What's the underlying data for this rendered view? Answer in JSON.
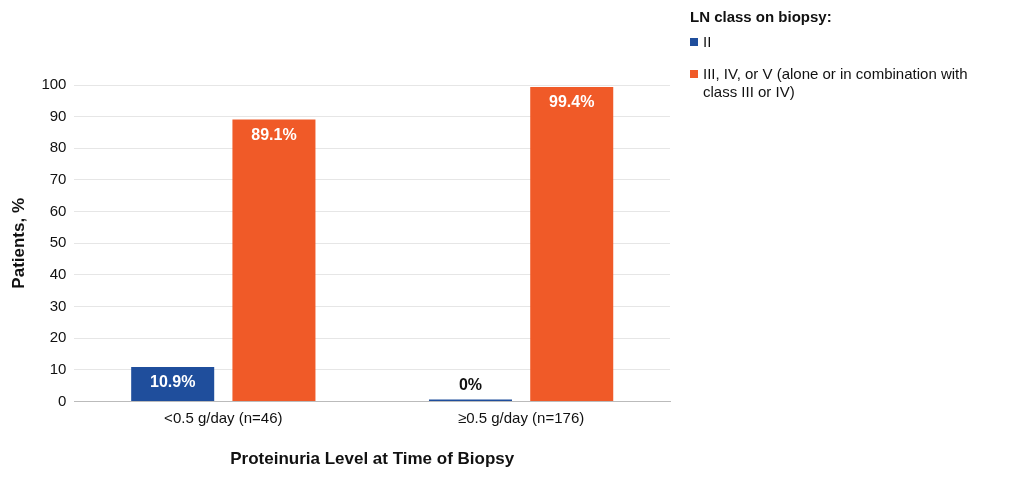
{
  "chart_data": {
    "type": "bar",
    "xlabel": "Proteinuria Level at Time of Biopsy",
    "ylabel": "Patients, %",
    "legend_title": "LN class on biopsy:",
    "categories": [
      "<0.5 g/day (n=46)",
      "≥0.5 g/day (n=176)"
    ],
    "series": [
      {
        "name": "II",
        "color": "#1f4e9c",
        "values": [
          10.9,
          0
        ],
        "value_labels": [
          "10.9%",
          "0%"
        ]
      },
      {
        "name": "III, IV, or V (alone or in combination with class III or IV)",
        "color": "#f05a28",
        "values": [
          89.1,
          99.4
        ],
        "value_labels": [
          "89.1%",
          "99.4%"
        ]
      }
    ],
    "ylim": [
      0,
      100
    ],
    "yticks": [
      0,
      10,
      20,
      30,
      40,
      50,
      60,
      70,
      80,
      90,
      100
    ],
    "grid": "y",
    "legend": "top right"
  }
}
